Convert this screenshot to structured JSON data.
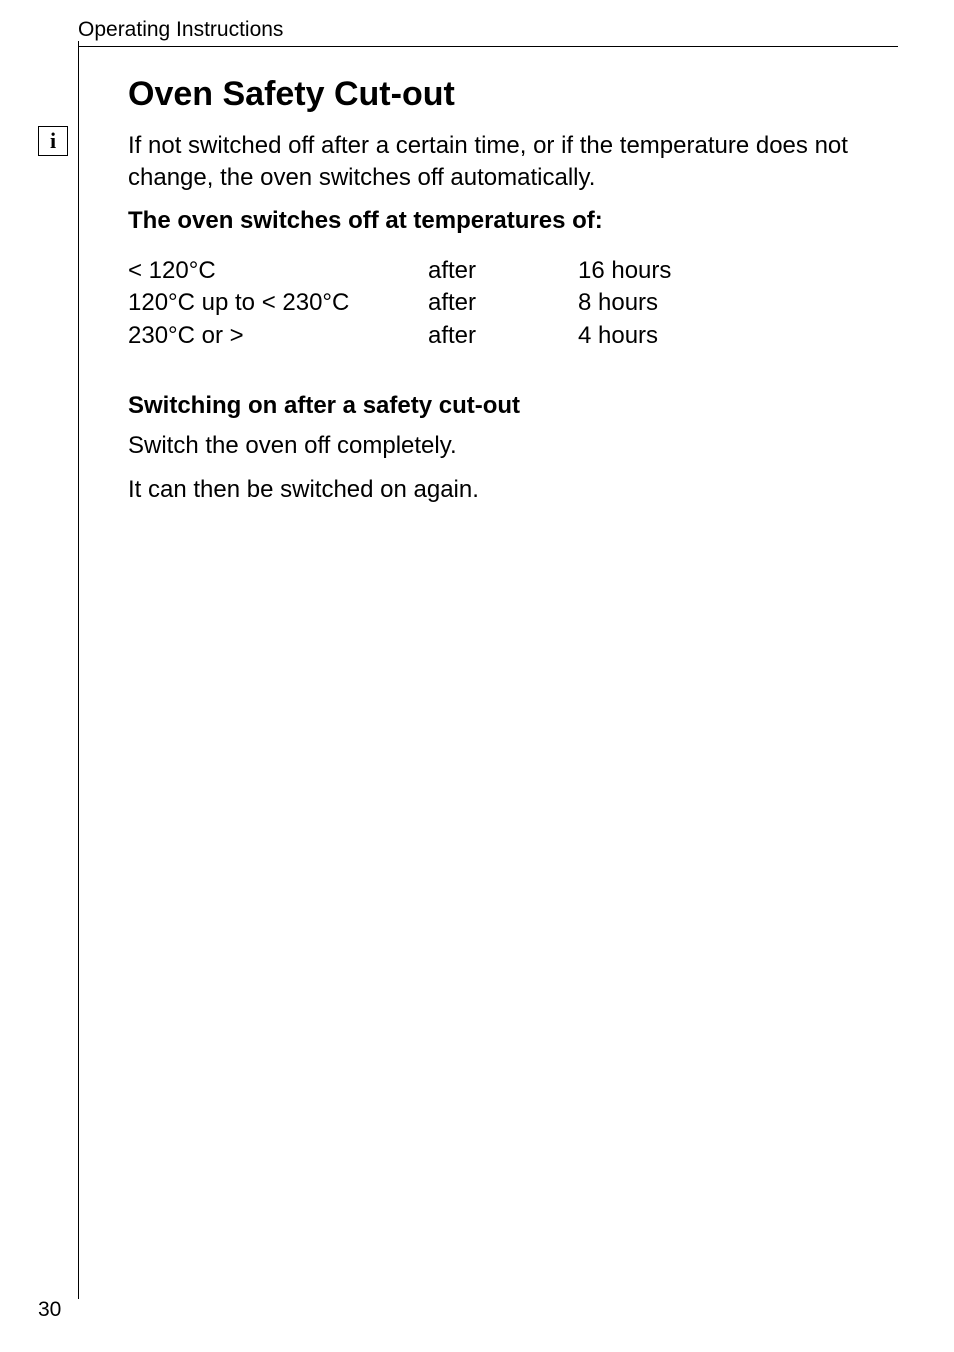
{
  "header": {
    "section": "Operating Instructions"
  },
  "title": "Oven Safety Cut-out",
  "info_icon_glyph": "i",
  "intro": "If not switched off after a certain time, or if the temperature does not change, the oven switches off automatically.",
  "switch_off_heading": "The oven switches off at temperatures of:",
  "temp_table": {
    "rows": [
      {
        "range": "< 120°C",
        "after_label": "after",
        "hours": "16 hours"
      },
      {
        "range": "120°C up to < 230°C",
        "after_label": "after",
        "hours": "8 hours"
      },
      {
        "range": "230°C or >",
        "after_label": "after",
        "hours": "4 hours"
      }
    ]
  },
  "subheading": "Switching on after a safety cut-out",
  "switch_on_line1": "Switch the oven off completely.",
  "switch_on_line2": "It can then be switched on again.",
  "page_number": "30",
  "colors": {
    "text": "#000000",
    "background": "#ffffff",
    "rule": "#000000"
  },
  "font_sizes_pt": {
    "header": 16,
    "title": 26,
    "body": 18,
    "page_number": 16
  }
}
